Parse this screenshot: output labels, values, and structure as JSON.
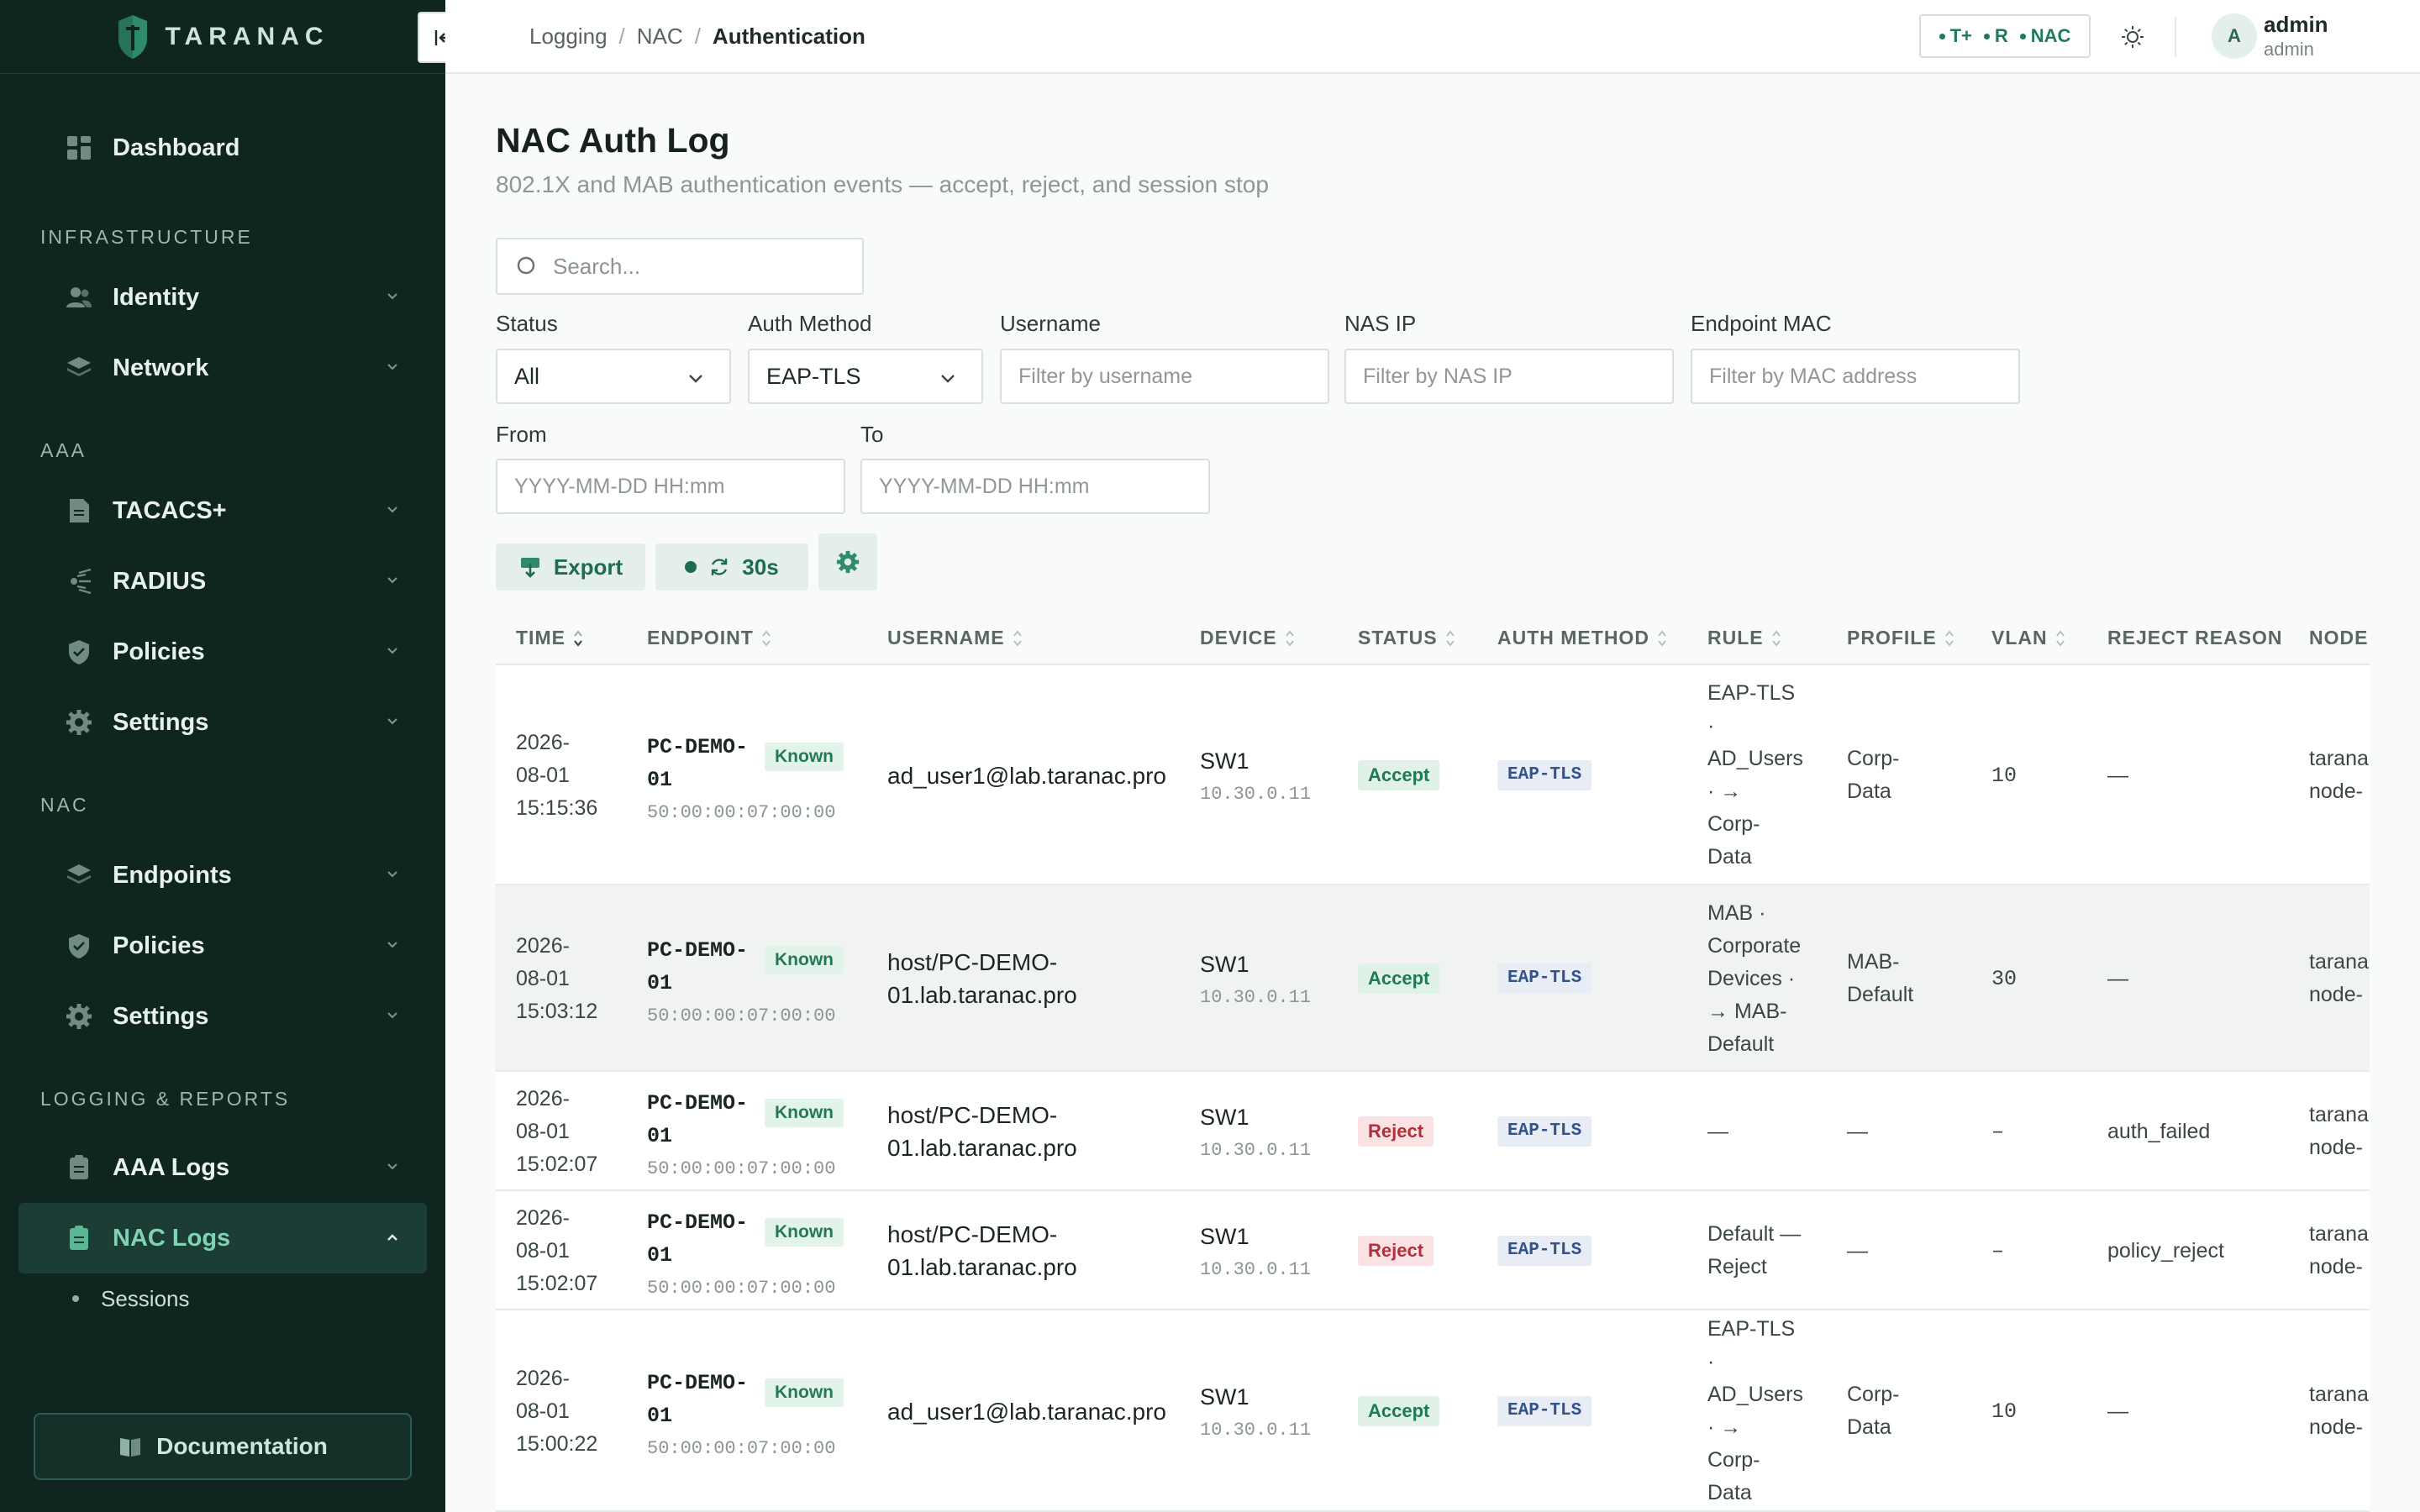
{
  "brand": {
    "name": "TARANAC"
  },
  "sidebar": {
    "dashboard": "Dashboard",
    "sections": {
      "infrastructure": "INFRASTRUCTURE",
      "aaa": "AAA",
      "nac": "NAC",
      "logging": "LOGGING & REPORTS"
    },
    "items": {
      "identity": "Identity",
      "network": "Network",
      "tacacs": "TACACS+",
      "radius": "RADIUS",
      "aaa_policies": "Policies",
      "aaa_settings": "Settings",
      "endpoints": "Endpoints",
      "nac_policies": "Policies",
      "nac_settings": "Settings",
      "aaa_logs": "AAA Logs",
      "nac_logs": "NAC Logs",
      "sessions": "Sessions"
    },
    "documentation": "Documentation"
  },
  "topbar": {
    "breadcrumb": [
      "Logging",
      "NAC",
      "Authentication"
    ],
    "status": [
      "T+",
      "R",
      "NAC"
    ],
    "user": {
      "avatar": "A",
      "name": "admin",
      "role": "admin"
    }
  },
  "page": {
    "title": "NAC Auth Log",
    "subtitle": "802.1X and MAB authentication events — accept, reject, and session stop"
  },
  "filters": {
    "search_placeholder": "Search...",
    "status_label": "Status",
    "status_value": "All",
    "auth_method_label": "Auth Method",
    "auth_method_value": "EAP-TLS",
    "username_label": "Username",
    "username_placeholder": "Filter by username",
    "nas_ip_label": "NAS IP",
    "nas_ip_placeholder": "Filter by NAS IP",
    "mac_label": "Endpoint MAC",
    "mac_placeholder": "Filter by MAC address",
    "from_label": "From",
    "from_placeholder": "YYYY-MM-DD HH:mm",
    "to_label": "To",
    "to_placeholder": "YYYY-MM-DD HH:mm"
  },
  "actions": {
    "export": "Export",
    "refresh_interval": "30s"
  },
  "table": {
    "columns": [
      "TIME",
      "ENDPOINT",
      "USERNAME",
      "DEVICE",
      "STATUS",
      "AUTH METHOD",
      "RULE",
      "PROFILE",
      "VLAN",
      "REJECT REASON",
      "NODE"
    ],
    "rows": [
      {
        "time": [
          "2026-",
          "08-01",
          "15:15:36"
        ],
        "endpoint": [
          "PC-DEMO-",
          "01"
        ],
        "known": "Known",
        "mac": "50:00:00:07:00:00",
        "username": [
          "ad_user1@lab.taranac.pro"
        ],
        "device": "SW1",
        "device_ip": "10.30.0.11",
        "status": "Accept",
        "method": "EAP-TLS",
        "rule": [
          "EAP-TLS",
          "·",
          "AD_Users",
          "· →",
          "Corp-",
          "Data"
        ],
        "profile": [
          "Corp-",
          "Data"
        ],
        "vlan": "10",
        "reason": "—",
        "node": [
          "tarana",
          "node-"
        ]
      },
      {
        "time": [
          "2026-",
          "08-01",
          "15:03:12"
        ],
        "endpoint": [
          "PC-DEMO-",
          "01"
        ],
        "known": "Known",
        "mac": "50:00:00:07:00:00",
        "username": [
          "host/PC-DEMO-",
          "01.lab.taranac.pro"
        ],
        "device": "SW1",
        "device_ip": "10.30.0.11",
        "status": "Accept",
        "method": "EAP-TLS",
        "rule": [
          "MAB ·",
          "Corporate",
          "Devices ·",
          "→ MAB-",
          "Default"
        ],
        "profile": [
          "MAB-",
          "Default"
        ],
        "vlan": "30",
        "reason": "—",
        "node": [
          "tarana",
          "node-"
        ]
      },
      {
        "time": [
          "2026-",
          "08-01",
          "15:02:07"
        ],
        "endpoint": [
          "PC-DEMO-",
          "01"
        ],
        "known": "Known",
        "mac": "50:00:00:07:00:00",
        "username": [
          "host/PC-DEMO-",
          "01.lab.taranac.pro"
        ],
        "device": "SW1",
        "device_ip": "10.30.0.11",
        "status": "Reject",
        "method": "EAP-TLS",
        "rule": [
          "—"
        ],
        "profile": [
          "—"
        ],
        "vlan": "–",
        "reason": "auth_failed",
        "node": [
          "tarana",
          "node-"
        ]
      },
      {
        "time": [
          "2026-",
          "08-01",
          "15:02:07"
        ],
        "endpoint": [
          "PC-DEMO-",
          "01"
        ],
        "known": "Known",
        "mac": "50:00:00:07:00:00",
        "username": [
          "host/PC-DEMO-",
          "01.lab.taranac.pro"
        ],
        "device": "SW1",
        "device_ip": "10.30.0.11",
        "status": "Reject",
        "method": "EAP-TLS",
        "rule": [
          "Default —",
          "Reject"
        ],
        "profile": [
          "—"
        ],
        "vlan": "–",
        "reason": "policy_reject",
        "node": [
          "tarana",
          "node-"
        ]
      },
      {
        "time": [
          "2026-",
          "08-01",
          "15:00:22"
        ],
        "endpoint": [
          "PC-DEMO-",
          "01"
        ],
        "known": "Known",
        "mac": "50:00:00:07:00:00",
        "username": [
          "ad_user1@lab.taranac.pro"
        ],
        "device": "SW1",
        "device_ip": "10.30.0.11",
        "status": "Accept",
        "method": "EAP-TLS",
        "rule": [
          "EAP-TLS",
          "·",
          "AD_Users",
          "· →",
          "Corp-",
          "Data"
        ],
        "profile": [
          "Corp-",
          "Data"
        ],
        "vlan": "10",
        "reason": "—",
        "node": [
          "tarana",
          "node-"
        ]
      }
    ]
  }
}
